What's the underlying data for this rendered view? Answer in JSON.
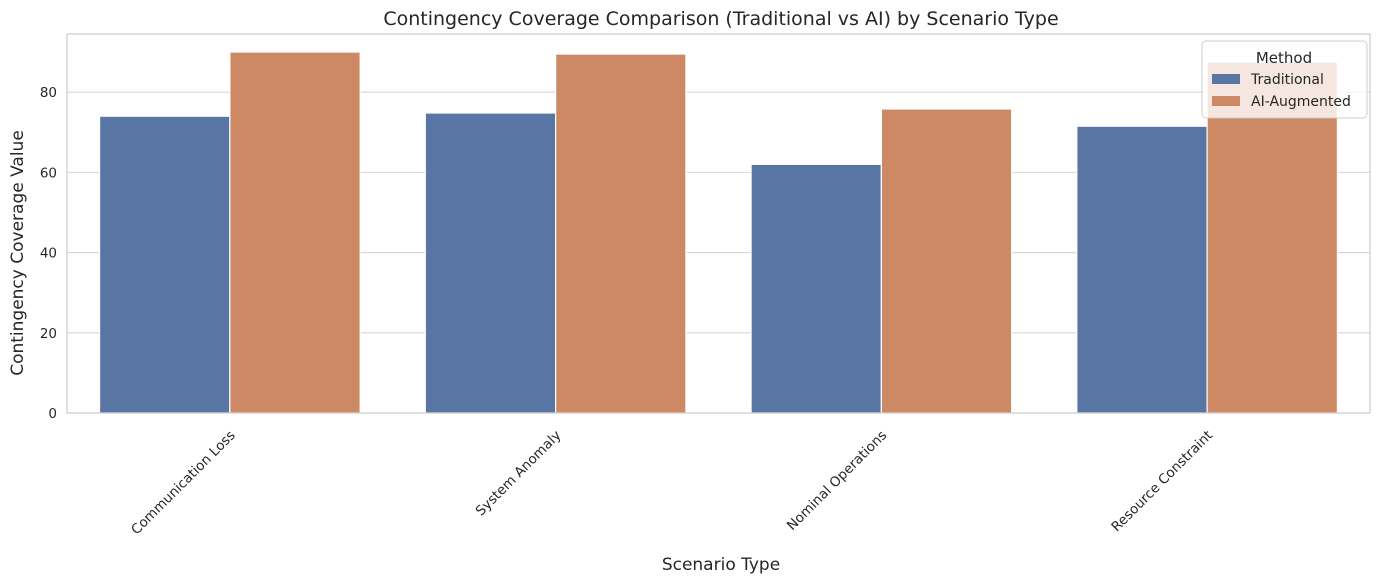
{
  "chart_data": {
    "type": "bar",
    "title": "Contingency Coverage Comparison (Traditional vs AI) by Scenario Type",
    "xlabel": "Scenario Type",
    "ylabel": "Contingency Coverage Value",
    "categories": [
      "Communication Loss",
      "System Anomaly",
      "Nominal Operations",
      "Resource Constraint"
    ],
    "series": [
      {
        "name": "Traditional",
        "color": "#5975a4",
        "values": [
          74.0,
          74.8,
          62.0,
          71.5
        ]
      },
      {
        "name": "AI-Augmented",
        "color": "#cc8963",
        "values": [
          90.0,
          89.5,
          75.8,
          87.5
        ]
      }
    ],
    "ylim": [
      0,
      94.5
    ],
    "yticks": [
      0,
      20,
      40,
      60,
      80
    ],
    "grid": true,
    "legend": {
      "title": "Method",
      "placement": "top-right"
    }
  }
}
